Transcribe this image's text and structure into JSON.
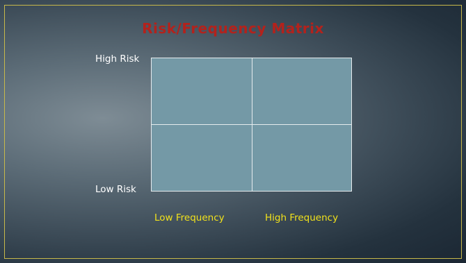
{
  "slide": {
    "title": "Risk/Frequency Matrix",
    "colors": {
      "title": "#b3221c",
      "frame": "#c8b94a",
      "grid_fill": "#7499a6",
      "grid_lines": "#e6ecee",
      "y_labels": "#ffffff",
      "x_labels": "#f2e21b"
    }
  },
  "matrix": {
    "rows": 2,
    "columns": 2,
    "y_axis": {
      "top_label": "High Risk",
      "bottom_label": "Low Risk"
    },
    "x_axis": {
      "left_label": "Low Frequency",
      "right_label": "High Frequency"
    }
  }
}
